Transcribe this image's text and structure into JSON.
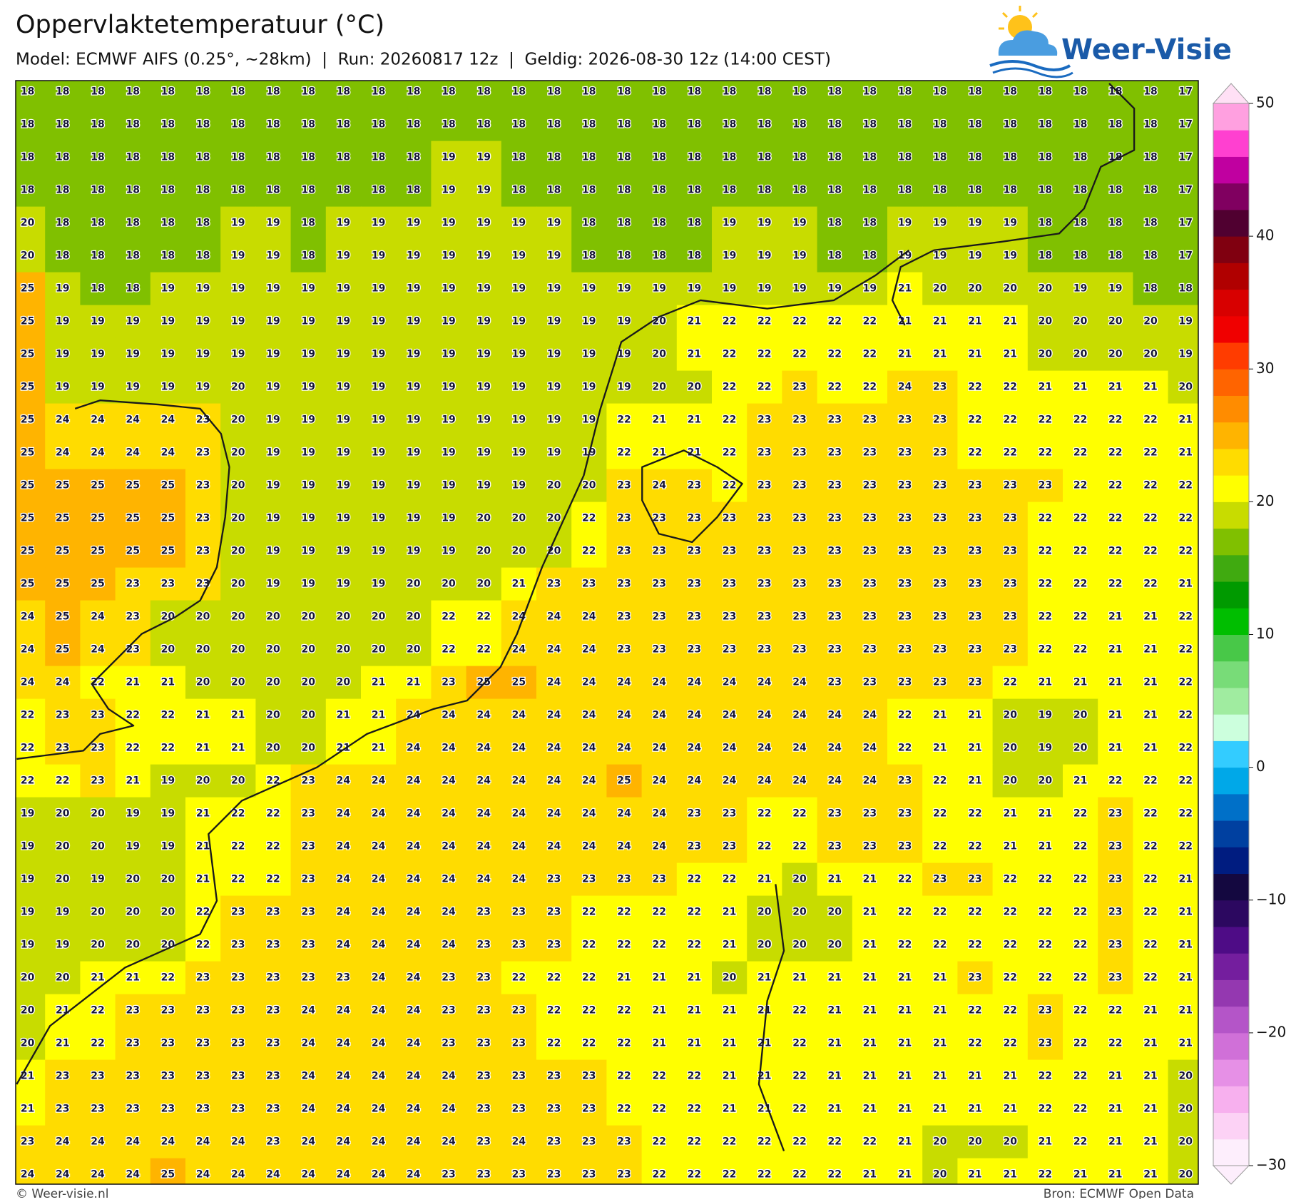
{
  "header": {
    "title": "Oppervlaktetemperatuur (°C)",
    "subtitle": "Model: ECMWF AIFS (0.25°, ~28km)  |  Run: 20260817 12z  |  Geldig: 2026-08-30 12z (14:00 CEST)"
  },
  "logo": {
    "text": "Weer-Visie"
  },
  "grid": {
    "values": [
      [
        18,
        18,
        18,
        18,
        18,
        18,
        18,
        18,
        18,
        18,
        18,
        18,
        18,
        18,
        18,
        18,
        18,
        18,
        18,
        18,
        18,
        18,
        18,
        18,
        18,
        18,
        18,
        18,
        18,
        18,
        18,
        18,
        18,
        17
      ],
      [
        18,
        18,
        18,
        18,
        18,
        18,
        18,
        18,
        18,
        18,
        18,
        18,
        18,
        18,
        18,
        18,
        18,
        18,
        18,
        18,
        18,
        18,
        18,
        18,
        18,
        18,
        18,
        18,
        18,
        18,
        18,
        18,
        18,
        17
      ],
      [
        18,
        18,
        18,
        18,
        18,
        18,
        18,
        18,
        18,
        18,
        18,
        18,
        19,
        19,
        18,
        18,
        18,
        18,
        18,
        18,
        18,
        18,
        18,
        18,
        18,
        18,
        18,
        18,
        18,
        18,
        18,
        18,
        18,
        17
      ],
      [
        18,
        18,
        18,
        18,
        18,
        18,
        18,
        18,
        18,
        18,
        18,
        18,
        19,
        19,
        18,
        18,
        18,
        18,
        18,
        18,
        18,
        18,
        18,
        18,
        18,
        18,
        18,
        18,
        18,
        18,
        18,
        18,
        18,
        17
      ],
      [
        20,
        18,
        18,
        18,
        18,
        18,
        19,
        19,
        18,
        19,
        19,
        19,
        19,
        19,
        19,
        19,
        18,
        18,
        18,
        18,
        19,
        19,
        19,
        18,
        18,
        19,
        19,
        19,
        19,
        18,
        18,
        18,
        18,
        17
      ],
      [
        20,
        18,
        18,
        18,
        18,
        18,
        19,
        19,
        18,
        19,
        19,
        19,
        19,
        19,
        19,
        19,
        18,
        18,
        18,
        18,
        19,
        19,
        19,
        18,
        18,
        19,
        19,
        19,
        19,
        18,
        18,
        18,
        18,
        17
      ],
      [
        25,
        19,
        18,
        18,
        19,
        19,
        19,
        19,
        19,
        19,
        19,
        19,
        19,
        19,
        19,
        19,
        19,
        19,
        19,
        19,
        19,
        19,
        19,
        19,
        19,
        21,
        20,
        20,
        20,
        20,
        19,
        19,
        18,
        18
      ],
      [
        25,
        19,
        19,
        19,
        19,
        19,
        19,
        19,
        19,
        19,
        19,
        19,
        19,
        19,
        19,
        19,
        19,
        19,
        20,
        21,
        22,
        22,
        22,
        22,
        22,
        21,
        21,
        21,
        21,
        20,
        20,
        20,
        20,
        19
      ],
      [
        25,
        19,
        19,
        19,
        19,
        19,
        19,
        19,
        19,
        19,
        19,
        19,
        19,
        19,
        19,
        19,
        19,
        19,
        20,
        21,
        22,
        22,
        22,
        22,
        22,
        21,
        21,
        21,
        21,
        20,
        20,
        20,
        20,
        19
      ],
      [
        25,
        19,
        19,
        19,
        19,
        19,
        20,
        19,
        19,
        19,
        19,
        19,
        19,
        19,
        19,
        19,
        19,
        19,
        20,
        20,
        22,
        22,
        23,
        22,
        22,
        24,
        23,
        22,
        22,
        21,
        21,
        21,
        21,
        20
      ],
      [
        25,
        24,
        24,
        24,
        24,
        23,
        20,
        19,
        19,
        19,
        19,
        19,
        19,
        19,
        19,
        19,
        19,
        22,
        21,
        21,
        22,
        23,
        23,
        23,
        23,
        23,
        23,
        22,
        22,
        22,
        22,
        22,
        22,
        21
      ],
      [
        25,
        24,
        24,
        24,
        24,
        23,
        20,
        19,
        19,
        19,
        19,
        19,
        19,
        19,
        19,
        19,
        19,
        22,
        21,
        21,
        22,
        23,
        23,
        23,
        23,
        23,
        23,
        22,
        22,
        22,
        22,
        22,
        22,
        21
      ],
      [
        25,
        25,
        25,
        25,
        25,
        23,
        20,
        19,
        19,
        19,
        19,
        19,
        19,
        19,
        19,
        20,
        20,
        23,
        24,
        23,
        22,
        23,
        23,
        23,
        23,
        23,
        23,
        23,
        23,
        23,
        22,
        22,
        22,
        22
      ],
      [
        25,
        25,
        25,
        25,
        25,
        23,
        20,
        19,
        19,
        19,
        19,
        19,
        19,
        20,
        20,
        20,
        22,
        23,
        23,
        23,
        23,
        23,
        23,
        23,
        23,
        23,
        23,
        23,
        23,
        22,
        22,
        22,
        22,
        22
      ],
      [
        25,
        25,
        25,
        25,
        25,
        23,
        20,
        19,
        19,
        19,
        19,
        19,
        19,
        20,
        20,
        20,
        22,
        23,
        23,
        23,
        23,
        23,
        23,
        23,
        23,
        23,
        23,
        23,
        23,
        22,
        22,
        22,
        22,
        22
      ],
      [
        25,
        25,
        25,
        23,
        23,
        23,
        20,
        19,
        19,
        19,
        19,
        20,
        20,
        20,
        21,
        23,
        23,
        23,
        23,
        23,
        23,
        23,
        23,
        23,
        23,
        23,
        23,
        23,
        23,
        22,
        22,
        22,
        22,
        21
      ],
      [
        24,
        25,
        24,
        23,
        20,
        20,
        20,
        20,
        20,
        20,
        20,
        20,
        22,
        22,
        24,
        24,
        24,
        23,
        23,
        23,
        23,
        23,
        23,
        23,
        23,
        23,
        23,
        23,
        23,
        22,
        22,
        21,
        21,
        22
      ],
      [
        24,
        25,
        24,
        23,
        20,
        20,
        20,
        20,
        20,
        20,
        20,
        20,
        22,
        22,
        24,
        24,
        24,
        23,
        23,
        23,
        23,
        23,
        23,
        23,
        23,
        23,
        23,
        23,
        23,
        22,
        22,
        21,
        21,
        22
      ],
      [
        24,
        24,
        22,
        21,
        21,
        20,
        20,
        20,
        20,
        20,
        21,
        21,
        23,
        25,
        25,
        24,
        24,
        24,
        24,
        24,
        24,
        24,
        24,
        23,
        23,
        23,
        23,
        23,
        22,
        21,
        21,
        21,
        21,
        22
      ],
      [
        22,
        23,
        23,
        22,
        22,
        21,
        21,
        20,
        20,
        21,
        21,
        24,
        24,
        24,
        24,
        24,
        24,
        24,
        24,
        24,
        24,
        24,
        24,
        24,
        24,
        22,
        21,
        21,
        20,
        19,
        20,
        21,
        21,
        22
      ],
      [
        22,
        23,
        23,
        22,
        22,
        21,
        21,
        20,
        20,
        21,
        21,
        24,
        24,
        24,
        24,
        24,
        24,
        24,
        24,
        24,
        24,
        24,
        24,
        24,
        24,
        22,
        21,
        21,
        20,
        19,
        20,
        21,
        21,
        22
      ],
      [
        22,
        22,
        23,
        21,
        19,
        20,
        20,
        22,
        23,
        24,
        24,
        24,
        24,
        24,
        24,
        24,
        24,
        25,
        24,
        24,
        24,
        24,
        24,
        24,
        24,
        23,
        22,
        21,
        20,
        20,
        21,
        22,
        22,
        22
      ],
      [
        19,
        20,
        20,
        19,
        19,
        21,
        22,
        22,
        23,
        24,
        24,
        24,
        24,
        24,
        24,
        24,
        24,
        24,
        24,
        23,
        23,
        22,
        22,
        23,
        23,
        23,
        22,
        22,
        21,
        21,
        22,
        23,
        22,
        22
      ],
      [
        19,
        20,
        20,
        19,
        19,
        21,
        22,
        22,
        23,
        24,
        24,
        24,
        24,
        24,
        24,
        24,
        24,
        24,
        24,
        23,
        23,
        22,
        22,
        23,
        23,
        23,
        22,
        22,
        21,
        21,
        22,
        23,
        22,
        22
      ],
      [
        19,
        20,
        19,
        20,
        20,
        21,
        22,
        22,
        23,
        24,
        24,
        24,
        24,
        24,
        24,
        23,
        23,
        23,
        23,
        22,
        22,
        21,
        20,
        21,
        21,
        22,
        23,
        23,
        22,
        22,
        22,
        23,
        22,
        21
      ],
      [
        19,
        19,
        20,
        20,
        20,
        22,
        23,
        23,
        23,
        24,
        24,
        24,
        24,
        23,
        23,
        23,
        22,
        22,
        22,
        22,
        21,
        20,
        20,
        20,
        21,
        22,
        22,
        22,
        22,
        22,
        22,
        23,
        22,
        21
      ],
      [
        19,
        19,
        20,
        20,
        20,
        22,
        23,
        23,
        23,
        24,
        24,
        24,
        24,
        23,
        23,
        23,
        22,
        22,
        22,
        22,
        21,
        20,
        20,
        20,
        21,
        22,
        22,
        22,
        22,
        22,
        22,
        23,
        22,
        21
      ],
      [
        20,
        20,
        21,
        21,
        22,
        23,
        23,
        23,
        23,
        23,
        24,
        24,
        23,
        23,
        22,
        22,
        22,
        21,
        21,
        21,
        20,
        21,
        21,
        21,
        21,
        21,
        21,
        23,
        22,
        22,
        22,
        23,
        22,
        21
      ],
      [
        20,
        21,
        22,
        23,
        23,
        23,
        23,
        23,
        24,
        24,
        24,
        24,
        23,
        23,
        23,
        22,
        22,
        22,
        21,
        21,
        21,
        21,
        22,
        21,
        21,
        21,
        21,
        22,
        22,
        23,
        22,
        22,
        21,
        21
      ],
      [
        20,
        21,
        22,
        23,
        23,
        23,
        23,
        23,
        24,
        24,
        24,
        24,
        23,
        23,
        23,
        22,
        22,
        22,
        21,
        21,
        21,
        21,
        22,
        21,
        21,
        21,
        21,
        22,
        22,
        23,
        22,
        22,
        21,
        21
      ],
      [
        21,
        23,
        23,
        23,
        23,
        23,
        23,
        23,
        24,
        24,
        24,
        24,
        24,
        23,
        23,
        23,
        23,
        22,
        22,
        22,
        21,
        21,
        22,
        21,
        21,
        21,
        21,
        21,
        21,
        22,
        22,
        21,
        21,
        20
      ],
      [
        21,
        23,
        23,
        23,
        23,
        23,
        23,
        23,
        24,
        24,
        24,
        24,
        24,
        23,
        23,
        23,
        23,
        22,
        22,
        22,
        21,
        21,
        22,
        21,
        21,
        21,
        21,
        21,
        21,
        22,
        22,
        21,
        21,
        20
      ],
      [
        23,
        24,
        24,
        24,
        24,
        24,
        24,
        23,
        24,
        24,
        24,
        24,
        24,
        23,
        24,
        23,
        23,
        23,
        22,
        22,
        22,
        22,
        22,
        22,
        22,
        21,
        20,
        20,
        20,
        21,
        22,
        21,
        21,
        20
      ],
      [
        24,
        24,
        24,
        24,
        25,
        24,
        24,
        24,
        24,
        24,
        24,
        24,
        23,
        23,
        23,
        23,
        23,
        23,
        22,
        22,
        22,
        22,
        22,
        22,
        21,
        21,
        20,
        21,
        21,
        22,
        21,
        21,
        21,
        20
      ]
    ]
  },
  "colorbar": {
    "levels": [
      -30,
      -28,
      -26,
      -24,
      -22,
      -20,
      -18,
      -16,
      -14,
      -12,
      -10,
      -8,
      -6,
      -4,
      -2,
      0,
      2,
      4,
      6,
      8,
      10,
      12,
      14,
      16,
      18,
      20,
      22,
      24,
      26,
      28,
      30,
      32,
      34,
      36,
      38,
      40,
      42,
      44,
      46,
      48,
      50
    ],
    "colors": [
      "#fdeefc",
      "#fcd2f5",
      "#f7b0ee",
      "#e690e6",
      "#d070d8",
      "#b455c8",
      "#9438b0",
      "#741e9e",
      "#4e0c86",
      "#2c0860",
      "#140840",
      "#001c80",
      "#0040a0",
      "#0070c8",
      "#00a8e8",
      "#33ccff",
      "#ccffdd",
      "#a0eca0",
      "#78dc78",
      "#48c848",
      "#00be00",
      "#009a00",
      "#40aa10",
      "#80c000",
      "#c8dc00",
      "#ffff00",
      "#ffdc00",
      "#ffb400",
      "#ff8c00",
      "#ff6400",
      "#ff3c00",
      "#f00000",
      "#d80000",
      "#b00000",
      "#800010",
      "#500030",
      "#800060",
      "#c000a0",
      "#ff40d0",
      "#ffa0e0",
      "#ffe0f5"
    ],
    "ticks": [
      50,
      40,
      30,
      20,
      10,
      0,
      {
        "value": -10,
        "label": "−10"
      },
      {
        "value": -20,
        "label": "−20"
      },
      {
        "value": -30,
        "label": "−30"
      }
    ]
  },
  "footer": {
    "left": "© Weer-visie.nl",
    "right": "Bron: ECMWF Open Data"
  }
}
